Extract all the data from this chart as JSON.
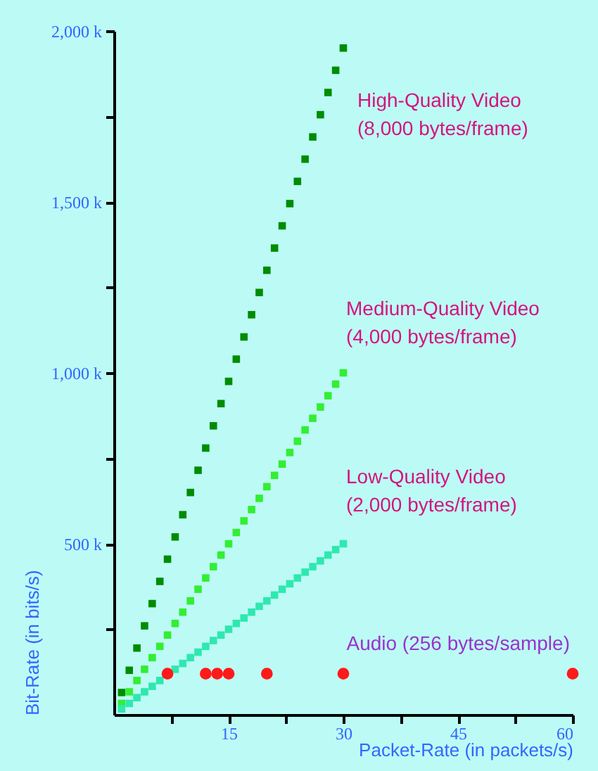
{
  "chart_data": {
    "type": "scatter",
    "xlabel": "Packet-Rate (in packets/s)",
    "ylabel": "Bit-Rate (in bits/s)",
    "x": [
      1,
      2,
      3,
      4,
      5,
      6,
      7,
      8,
      9,
      10,
      11,
      12,
      13,
      14,
      15,
      16,
      17,
      18,
      19,
      20,
      21,
      22,
      23,
      24,
      25,
      26,
      27,
      28,
      29,
      30
    ],
    "series": [
      {
        "name": "High-Quality Video (8,000 bytes/frame)",
        "color": "#008c00",
        "marker": "square",
        "values": [
          65,
          130,
          195,
          260,
          325,
          390,
          455,
          520,
          585,
          650,
          715,
          780,
          845,
          910,
          975,
          1040,
          1105,
          1170,
          1235,
          1300,
          1365,
          1430,
          1495,
          1560,
          1625,
          1690,
          1755,
          1820,
          1885,
          1950
        ]
      },
      {
        "name": "Medium-Quality Video (4,000 bytes/frame)",
        "color": "#33ee33",
        "marker": "square",
        "values": [
          33,
          67,
          100,
          133,
          167,
          200,
          233,
          267,
          300,
          333,
          367,
          400,
          433,
          467,
          500,
          533,
          567,
          600,
          633,
          667,
          700,
          733,
          767,
          800,
          833,
          867,
          900,
          933,
          967,
          1000
        ]
      },
      {
        "name": "Low-Quality Video (2,000 bytes/frame)",
        "color": "#2ee8b0",
        "marker": "square",
        "values": [
          17,
          33,
          50,
          67,
          83,
          100,
          null,
          133,
          150,
          167,
          183,
          200,
          217,
          233,
          250,
          267,
          283,
          300,
          317,
          333,
          350,
          367,
          383,
          400,
          417,
          433,
          450,
          467,
          483,
          500
        ]
      },
      {
        "name": "Audio (256 bytes/sample)",
        "color": "#ff1a1a",
        "marker": "circle",
        "x": [
          7,
          12,
          13.5,
          15,
          20,
          30,
          60
        ],
        "values": [
          120,
          120,
          120,
          120,
          120,
          120,
          120
        ]
      }
    ],
    "xlim": [
      0,
      60
    ],
    "xticks": [
      {
        "value": 7.5,
        "label": null
      },
      15,
      {
        "value": 22.5,
        "label": null
      },
      30,
      {
        "value": 37.5,
        "label": null
      },
      45,
      {
        "value": 52.5,
        "label": null
      },
      60
    ],
    "ylim": [
      0,
      2000
    ],
    "yticks": [
      {
        "value": 250,
        "label": null
      },
      {
        "value": 500,
        "label": "500 k"
      },
      {
        "value": 750,
        "label": null
      },
      {
        "value": 1000,
        "label": "1,000 k"
      },
      {
        "value": 1250,
        "label": null
      },
      {
        "value": 1500,
        "label": "1,500 k"
      },
      {
        "value": 1750,
        "label": null
      },
      {
        "value": 2000,
        "label": "2,000 k"
      }
    ],
    "grid": false
  }
}
